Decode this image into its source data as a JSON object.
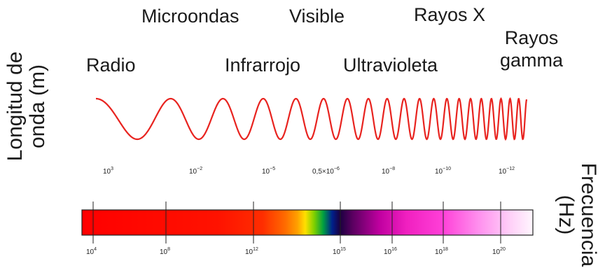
{
  "bands": {
    "radio": "Radio",
    "microondas": "Microondas",
    "infrarrojo": "Infrarrojo",
    "visible": "Visible",
    "ultravioleta": "Ultravioleta",
    "rayos_x": "Rayos X",
    "rayos_gamma_1": "Rayos",
    "rayos_gamma_2": "gamma"
  },
  "axes": {
    "wavelength_1": "Longitud de",
    "wavelength_2": "onda (m)",
    "frequency_1": "Frecuencia",
    "frequency_2": "(Hz)"
  },
  "wavelength_ticks": [
    {
      "base": "10",
      "exp": "3"
    },
    {
      "base": "10",
      "exp": "−2"
    },
    {
      "base": "10",
      "exp": "−5"
    },
    {
      "base": "0,5×10",
      "exp": "−6"
    },
    {
      "base": "10",
      "exp": "−8"
    },
    {
      "base": "10",
      "exp": "−10"
    },
    {
      "base": "10",
      "exp": "−12"
    }
  ],
  "frequency_ticks": [
    {
      "base": "10",
      "exp": "4"
    },
    {
      "base": "10",
      "exp": "8"
    },
    {
      "base": "10",
      "exp": "12"
    },
    {
      "base": "10",
      "exp": "15"
    },
    {
      "base": "10",
      "exp": "16"
    },
    {
      "base": "10",
      "exp": "18"
    },
    {
      "base": "10",
      "exp": "20"
    }
  ],
  "colors": {
    "wave": "#e8231f",
    "text": "#1a1a1a"
  }
}
